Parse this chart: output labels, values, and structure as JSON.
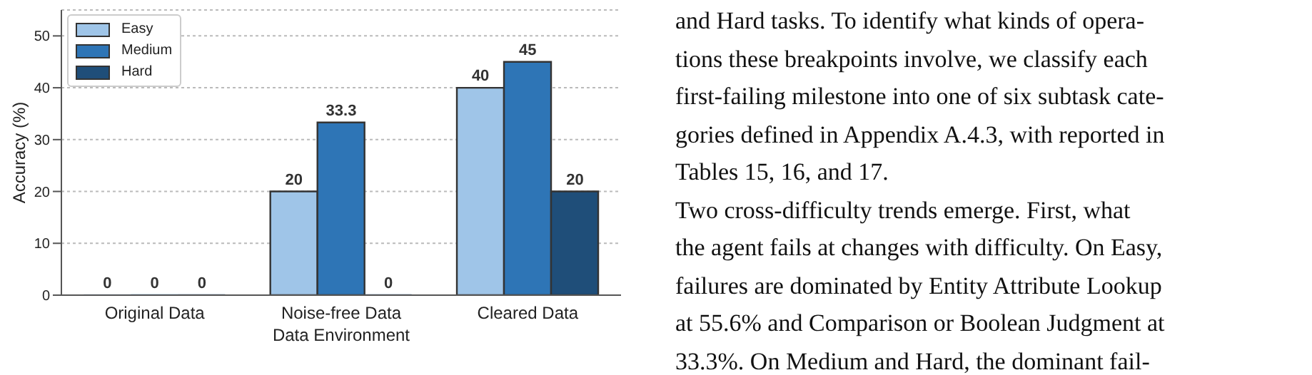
{
  "chart_data": {
    "type": "bar",
    "xlabel": "Data Environment",
    "ylabel": "Accuracy (%)",
    "categories": [
      "Original Data",
      "Noise-free Data",
      "Cleared Data"
    ],
    "series": [
      {
        "name": "Easy",
        "color": "#9fc5e8",
        "values": [
          0,
          20,
          40
        ]
      },
      {
        "name": "Medium",
        "color": "#2e75b6",
        "values": [
          0,
          33.3,
          45
        ]
      },
      {
        "name": "Hard",
        "color": "#1f4e79",
        "values": [
          0,
          0,
          20
        ]
      }
    ],
    "ylim": [
      0,
      55
    ],
    "yticks": [
      0,
      10,
      20,
      30,
      40,
      50
    ],
    "grid": "y",
    "legend": "top left",
    "data_labels": true,
    "annotations": [
      "and Hard tasks. To identify what kinds of opera-",
      "tions these breakpoints involve, we classify each",
      "first-failing milestone into one of six subtask cate-",
      "gories defined in Appendix A.4.3, with reported in",
      "Tables 15, 16, and 17.",
      "Two cross-difficulty trends emerge. First, what",
      "the agent fails at changes with difficulty. On Easy,",
      "failures are dominated by Entity Attribute Lookup",
      "at 55.6% and Comparison or Boolean Judgment at",
      "33.3%. On Medium and Hard, the dominant fail-"
    ]
  }
}
